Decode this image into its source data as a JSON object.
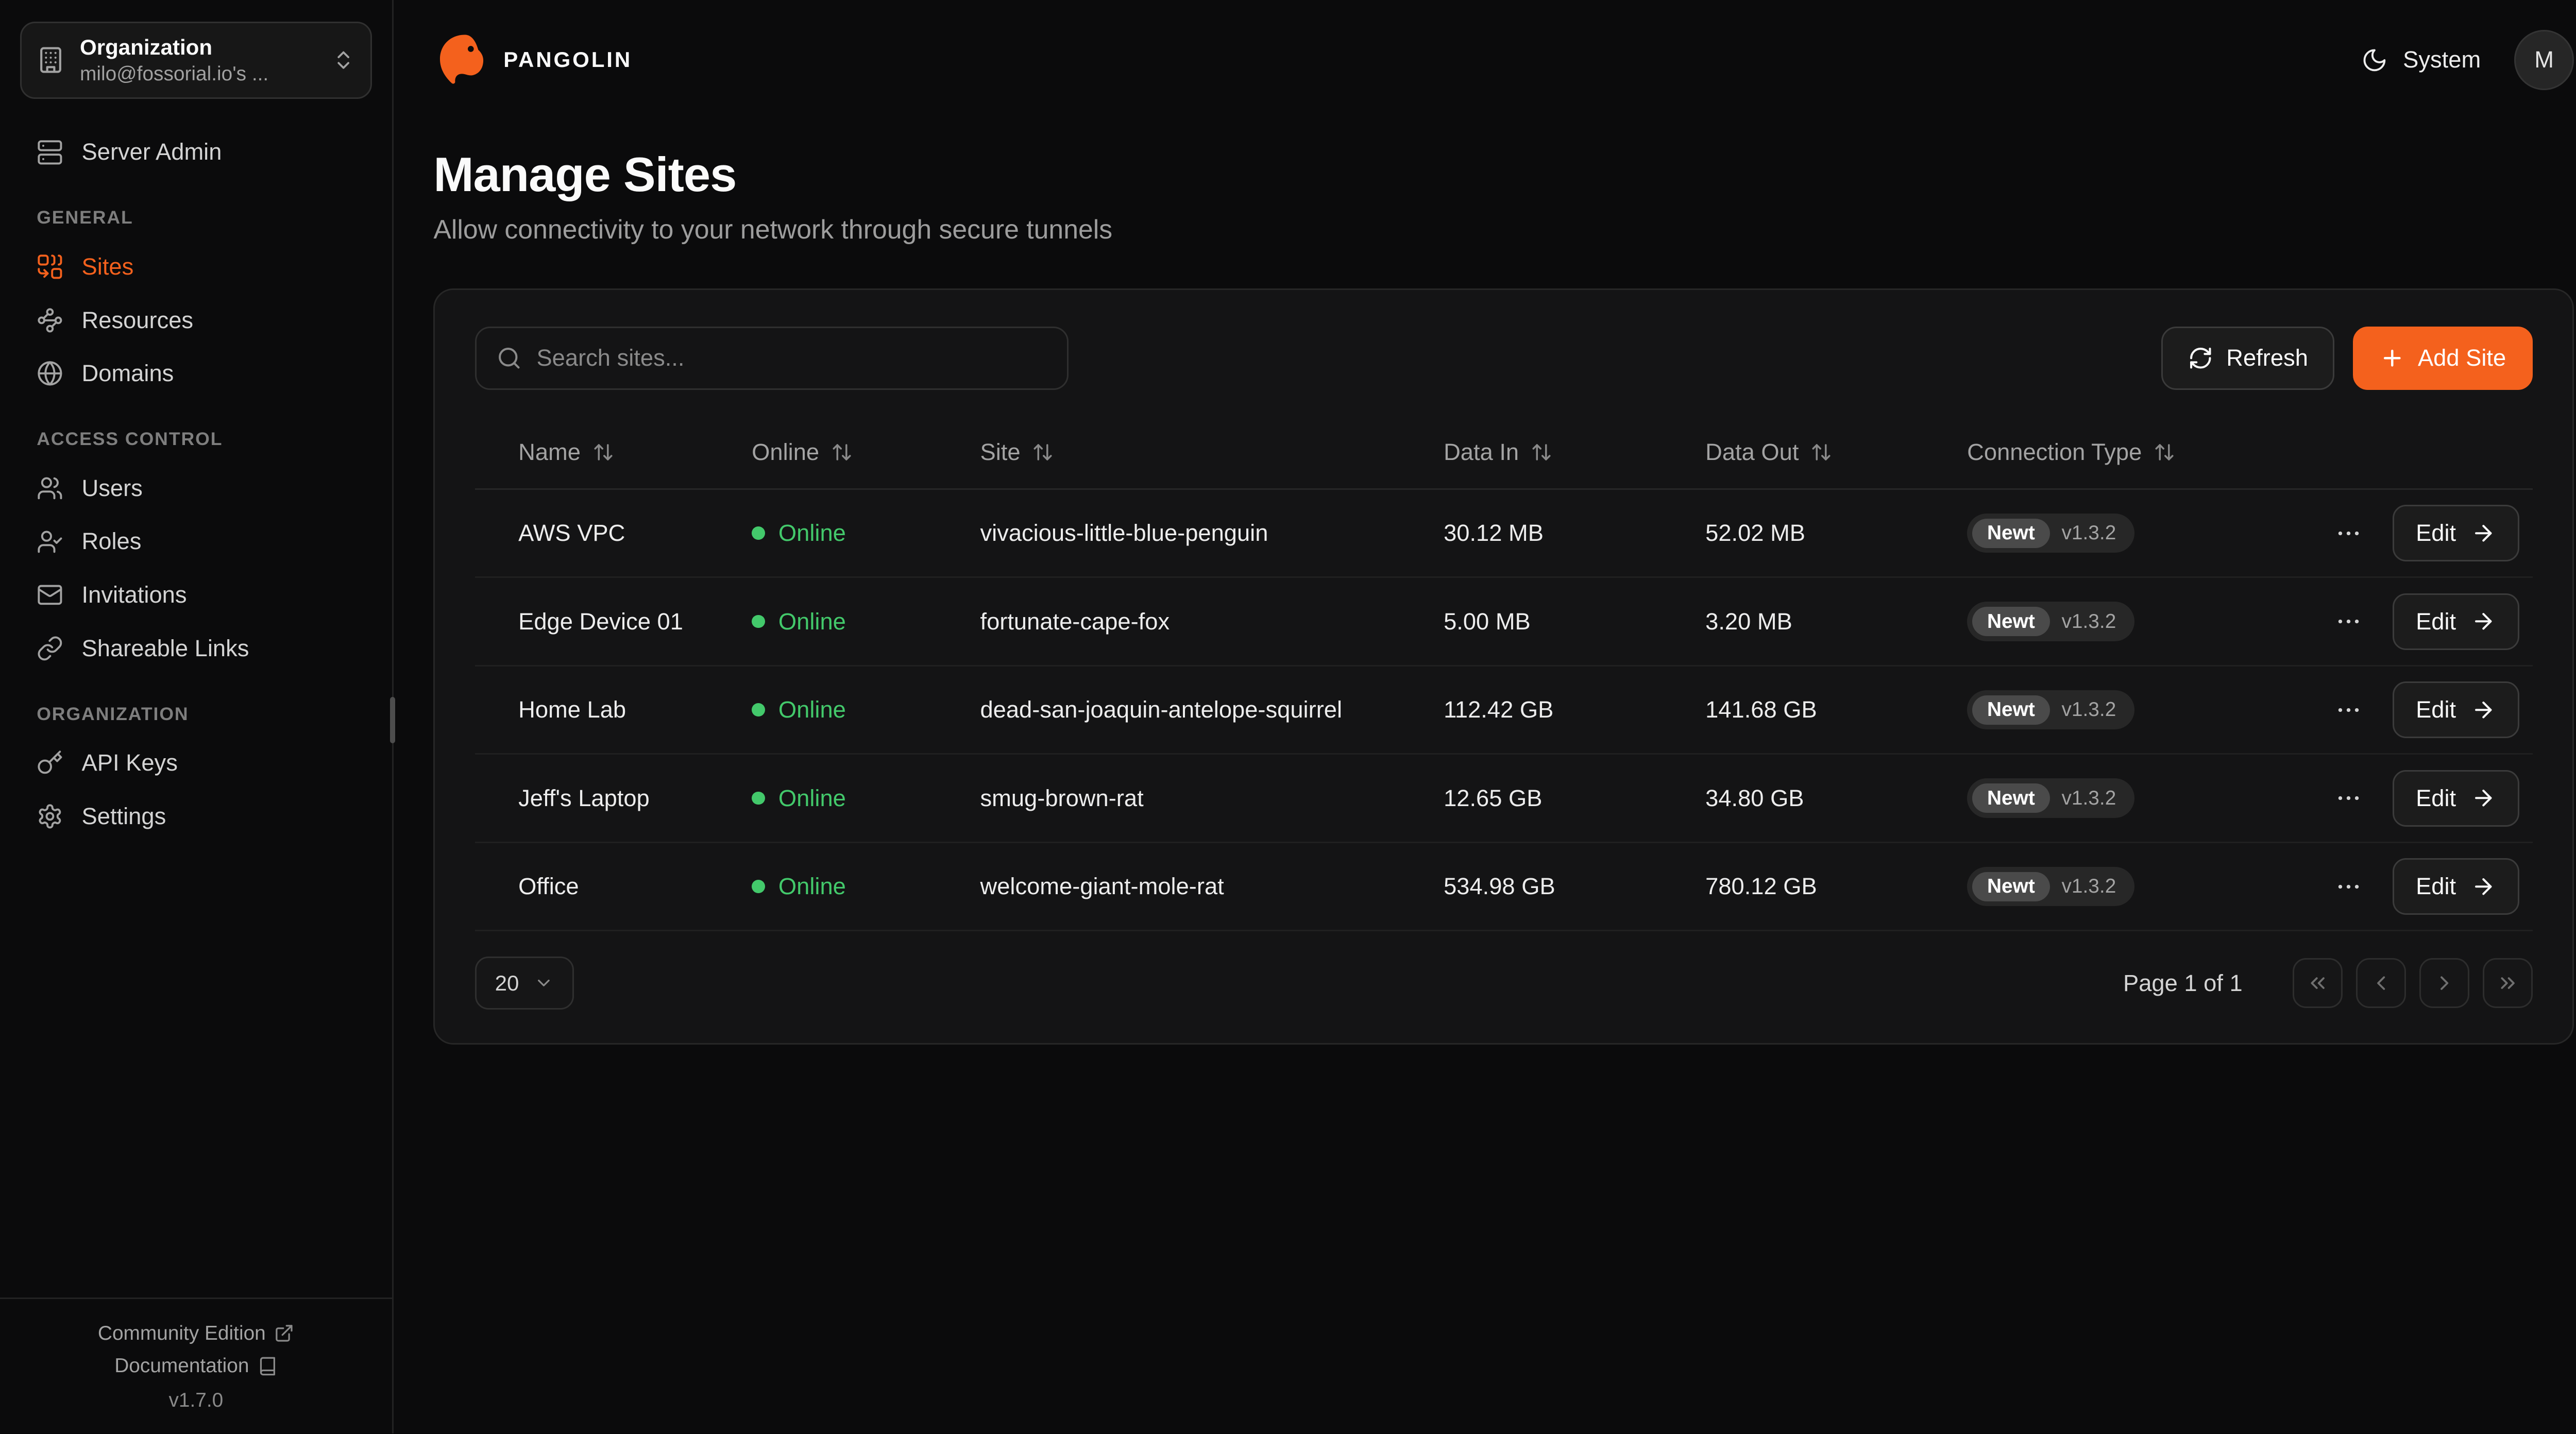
{
  "colors": {
    "accent": "#f4611d",
    "online": "#43c96b"
  },
  "sidebar": {
    "org": {
      "label": "Organization",
      "value": "milo@fossorial.io's ..."
    },
    "server_admin": {
      "label": "Server Admin"
    },
    "sections": [
      {
        "title": "GENERAL",
        "items": [
          {
            "label": "Sites",
            "icon": "sites",
            "active": true
          },
          {
            "label": "Resources",
            "icon": "resources"
          },
          {
            "label": "Domains",
            "icon": "domains"
          }
        ]
      },
      {
        "title": "ACCESS CONTROL",
        "items": [
          {
            "label": "Users",
            "icon": "users"
          },
          {
            "label": "Roles",
            "icon": "roles"
          },
          {
            "label": "Invitations",
            "icon": "invitations"
          },
          {
            "label": "Shareable Links",
            "icon": "shareable-links"
          }
        ]
      },
      {
        "title": "ORGANIZATION",
        "items": [
          {
            "label": "API Keys",
            "icon": "api-keys"
          },
          {
            "label": "Settings",
            "icon": "settings"
          }
        ]
      }
    ],
    "footer": {
      "community_edition": "Community Edition",
      "documentation": "Documentation",
      "version": "v1.7.0"
    }
  },
  "header": {
    "brand": "PANGOLIN",
    "theme_label": "System",
    "avatar_initial": "M"
  },
  "page": {
    "title": "Manage Sites",
    "subtitle": "Allow connectivity to your network through secure tunnels"
  },
  "toolbar": {
    "search_placeholder": "Search sites...",
    "refresh_label": "Refresh",
    "add_site_label": "Add Site"
  },
  "table": {
    "columns": [
      "Name",
      "Online",
      "Site",
      "Data In",
      "Data Out",
      "Connection Type"
    ],
    "edit_label": "Edit",
    "rows": [
      {
        "name": "AWS VPC",
        "status": "Online",
        "site": "vivacious-little-blue-penguin",
        "data_in": "30.12 MB",
        "data_out": "52.02 MB",
        "connection": {
          "name": "Newt",
          "version": "v1.3.2"
        }
      },
      {
        "name": "Edge Device 01",
        "status": "Online",
        "site": "fortunate-cape-fox",
        "data_in": "5.00 MB",
        "data_out": "3.20 MB",
        "connection": {
          "name": "Newt",
          "version": "v1.3.2"
        }
      },
      {
        "name": "Home Lab",
        "status": "Online",
        "site": "dead-san-joaquin-antelope-squirrel",
        "data_in": "112.42 GB",
        "data_out": "141.68 GB",
        "connection": {
          "name": "Newt",
          "version": "v1.3.2"
        }
      },
      {
        "name": "Jeff's Laptop",
        "status": "Online",
        "site": "smug-brown-rat",
        "data_in": "12.65 GB",
        "data_out": "34.80 GB",
        "connection": {
          "name": "Newt",
          "version": "v1.3.2"
        }
      },
      {
        "name": "Office",
        "status": "Online",
        "site": "welcome-giant-mole-rat",
        "data_in": "534.98 GB",
        "data_out": "780.12 GB",
        "connection": {
          "name": "Newt",
          "version": "v1.3.2"
        }
      }
    ]
  },
  "pagination": {
    "page_size": "20",
    "page_label": "Page 1 of 1"
  }
}
